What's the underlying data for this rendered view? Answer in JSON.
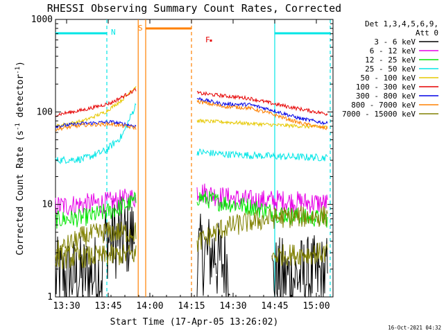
{
  "chart_data": {
    "type": "line",
    "title": "RHESSI Observing Summary Count Rates, Corrected",
    "xlabel": "Start Time (17-Apr-05 13:26:02)",
    "ylabel_main": "Corrected Count Rate (s",
    "ylabel_sup1": "-1",
    "ylabel_mid": " detector",
    "ylabel_sup2": "-1",
    "ylabel_end": ")",
    "x_unit": "minutes since 13:26:02",
    "xlim": [
      0,
      100
    ],
    "ylim": [
      1,
      1000
    ],
    "y_scale": "log",
    "x_ticks": [
      {
        "label": "13:30",
        "x": 4
      },
      {
        "label": "13:45",
        "x": 19
      },
      {
        "label": "14:00",
        "x": 34
      },
      {
        "label": "14:15",
        "x": 49
      },
      {
        "label": "14:30",
        "x": 64
      },
      {
        "label": "14:45",
        "x": 79
      },
      {
        "label": "15:00",
        "x": 94
      }
    ],
    "y_ticks": [
      {
        "label": "1",
        "y": 1
      },
      {
        "label": "10",
        "y": 10
      },
      {
        "label": "100",
        "y": 100
      },
      {
        "label": "1000",
        "y": 1000
      }
    ],
    "legend": {
      "header1": "Det 1,3,4,5,6,9,",
      "header2": "Att 0",
      "position": "right"
    },
    "series": [
      {
        "name": "3 - 6 keV",
        "color": "#000000",
        "noise": 0.45,
        "segments": [
          [
            [
              0,
              1.6
            ],
            [
              17,
              1.8
            ]
          ],
          [
            [
              17.5,
              4.2
            ],
            [
              28.5,
              4.5
            ]
          ],
          [
            [
              51,
              2.8
            ],
            [
              58,
              3.0
            ]
          ],
          [
            [
              58,
              2.4
            ],
            [
              63,
              2.3
            ]
          ],
          [
            [
              78,
              1.6
            ],
            [
              98,
              1.7
            ]
          ]
        ]
      },
      {
        "name": "6 - 12 keV",
        "color": "#e600e6",
        "noise": 0.12,
        "segments": [
          [
            [
              0,
              9.5
            ],
            [
              10,
              10
            ],
            [
              20,
              10.5
            ],
            [
              29,
              12
            ]
          ],
          [
            [
              51,
              14
            ],
            [
              60,
              12
            ],
            [
              70,
              11
            ],
            [
              80,
              11
            ],
            [
              90,
              10.5
            ],
            [
              98,
              10.2
            ]
          ]
        ]
      },
      {
        "name": "12 - 25 keV",
        "color": "#00e600",
        "noise": 0.1,
        "segments": [
          [
            [
              0,
              6.8
            ],
            [
              10,
              7.2
            ],
            [
              20,
              8.5
            ],
            [
              29,
              11
            ]
          ],
          [
            [
              51,
              12
            ],
            [
              60,
              10.5
            ],
            [
              70,
              9.5
            ],
            [
              80,
              8
            ],
            [
              90,
              7.2
            ],
            [
              98,
              7
            ]
          ]
        ]
      },
      {
        "name": "25 - 50 keV",
        "color": "#00e6e6",
        "noise": 0.04,
        "segments": [
          [
            [
              0,
              30
            ],
            [
              10,
              31
            ],
            [
              18,
              38
            ],
            [
              24,
              55
            ],
            [
              29,
              120
            ]
          ],
          [
            [
              51,
              37
            ],
            [
              60,
              35
            ],
            [
              70,
              34
            ],
            [
              80,
              33
            ],
            [
              98,
              32
            ]
          ]
        ]
      },
      {
        "name": "50 - 100 keV",
        "color": "#e6c800",
        "noise": 0.02,
        "segments": [
          [
            [
              0,
              70
            ],
            [
              10,
              80
            ],
            [
              18,
              100
            ],
            [
              24,
              135
            ],
            [
              29,
              190
            ]
          ],
          [
            [
              51,
              80
            ],
            [
              60,
              78
            ],
            [
              70,
              75
            ],
            [
              80,
              72
            ],
            [
              98,
              68
            ]
          ]
        ]
      },
      {
        "name": "100 - 300 keV",
        "color": "#e60000",
        "noise": 0.02,
        "segments": [
          [
            [
              0,
              93
            ],
            [
              10,
              105
            ],
            [
              20,
              125
            ],
            [
              29,
              175
            ]
          ],
          [
            [
              51,
              160
            ],
            [
              60,
              150
            ],
            [
              70,
              140
            ],
            [
              80,
              120
            ],
            [
              90,
              105
            ],
            [
              98,
              95
            ]
          ]
        ]
      },
      {
        "name": "300 - 800 keV",
        "color": "#0000e6",
        "noise": 0.02,
        "segments": [
          [
            [
              0,
              70
            ],
            [
              10,
              75
            ],
            [
              20,
              78
            ],
            [
              29,
              70
            ]
          ],
          [
            [
              51,
              140
            ],
            [
              60,
              122
            ],
            [
              70,
              120
            ],
            [
              78,
              105
            ],
            [
              88,
              85
            ],
            [
              98,
              75
            ]
          ]
        ]
      },
      {
        "name": "800 - 7000 keV",
        "color": "#ff8000",
        "noise": 0.02,
        "segments": [
          [
            [
              0,
              65
            ],
            [
              10,
              72
            ],
            [
              20,
              74
            ],
            [
              29,
              67
            ]
          ],
          [
            [
              51,
              130
            ],
            [
              60,
              115
            ],
            [
              70,
              110
            ],
            [
              78,
              95
            ],
            [
              88,
              76
            ],
            [
              98,
              66
            ]
          ]
        ]
      },
      {
        "name": "7000 - 15000 keV",
        "color": "#808000",
        "noise": 0.12,
        "segments": [
          [
            [
              0,
              3.0
            ],
            [
              10,
              4.5
            ],
            [
              18,
              5.0
            ],
            [
              29,
              5.0
            ]
          ],
          [
            [
              51,
              3.8
            ],
            [
              60,
              5.5
            ],
            [
              70,
              6.5
            ],
            [
              80,
              7.2
            ],
            [
              98,
              7.5
            ]
          ],
          [
            [
              0,
              2.6
            ],
            [
              29,
              2.9
            ]
          ],
          [
            [
              78,
              2.8
            ],
            [
              98,
              3.0
            ]
          ]
        ]
      }
    ],
    "annotations": {
      "night_label": "N",
      "saa_label": "S",
      "flare_label": "F",
      "flare_marker_color": "#e60000",
      "night_color": "#00e6e6",
      "saa_color": "#ff8000",
      "night_intervals": [
        [
          0,
          18.5
        ],
        [
          79,
          99
        ]
      ],
      "saa_interval": [
        32.5,
        49
      ],
      "flare_label_x": 54,
      "flare_marker_x": 56,
      "vlines": [
        {
          "x": 18.5,
          "color": "#00e6e6",
          "dash": true
        },
        {
          "x": 29.8,
          "color": "#ff8000",
          "dash": false
        },
        {
          "x": 32.5,
          "color": "#ff8000",
          "dash": false
        },
        {
          "x": 49,
          "color": "#ff8000",
          "dash": true
        },
        {
          "x": 79,
          "color": "#00e6e6",
          "dash": false
        },
        {
          "x": 99,
          "color": "#00e6e6",
          "dash": true
        }
      ]
    }
  },
  "footer": {
    "timestamp": "16-Oct-2021 04:32"
  }
}
